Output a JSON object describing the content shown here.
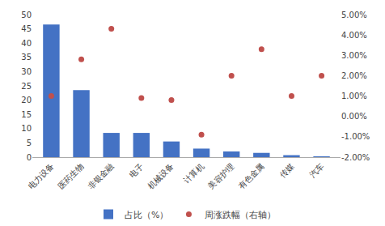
{
  "chart_data": {
    "type": "bar",
    "categories": [
      "电力设备",
      "医药生物",
      "非银金融",
      "电子",
      "机械设备",
      "计算机",
      "美容护理",
      "有色金属",
      "传媒",
      "汽车"
    ],
    "series": [
      {
        "name": "占比（%）",
        "type": "bar",
        "color": "#4472C4",
        "values": [
          46.5,
          23.5,
          8.5,
          8.5,
          5.5,
          3.0,
          2.0,
          1.5,
          0.7,
          0.3
        ]
      },
      {
        "name": "周涨跌幅（右轴）",
        "type": "scatter",
        "marker": "circle",
        "axis": "y2",
        "color": "#C0504D",
        "values": [
          0.01,
          0.028,
          0.043,
          0.009,
          0.008,
          -0.009,
          0.02,
          0.033,
          0.01,
          0.02
        ]
      }
    ],
    "ylim": [
      0,
      50
    ],
    "yticks": [
      0,
      5,
      10,
      15,
      20,
      25,
      30,
      35,
      40,
      45,
      50
    ],
    "y2lim": [
      -0.02,
      0.05
    ],
    "y2ticks": [
      {
        "value": -0.02,
        "label": "-2.00%"
      },
      {
        "value": -0.01,
        "label": "-1.00%"
      },
      {
        "value": 0.0,
        "label": "0.00%"
      },
      {
        "value": 0.01,
        "label": "1.00%"
      },
      {
        "value": 0.02,
        "label": "2.00%"
      },
      {
        "value": 0.03,
        "label": "3.00%"
      },
      {
        "value": 0.04,
        "label": "4.00%"
      },
      {
        "value": 0.05,
        "label": "5.00%"
      }
    ],
    "grid": false,
    "legend": "bottom"
  }
}
